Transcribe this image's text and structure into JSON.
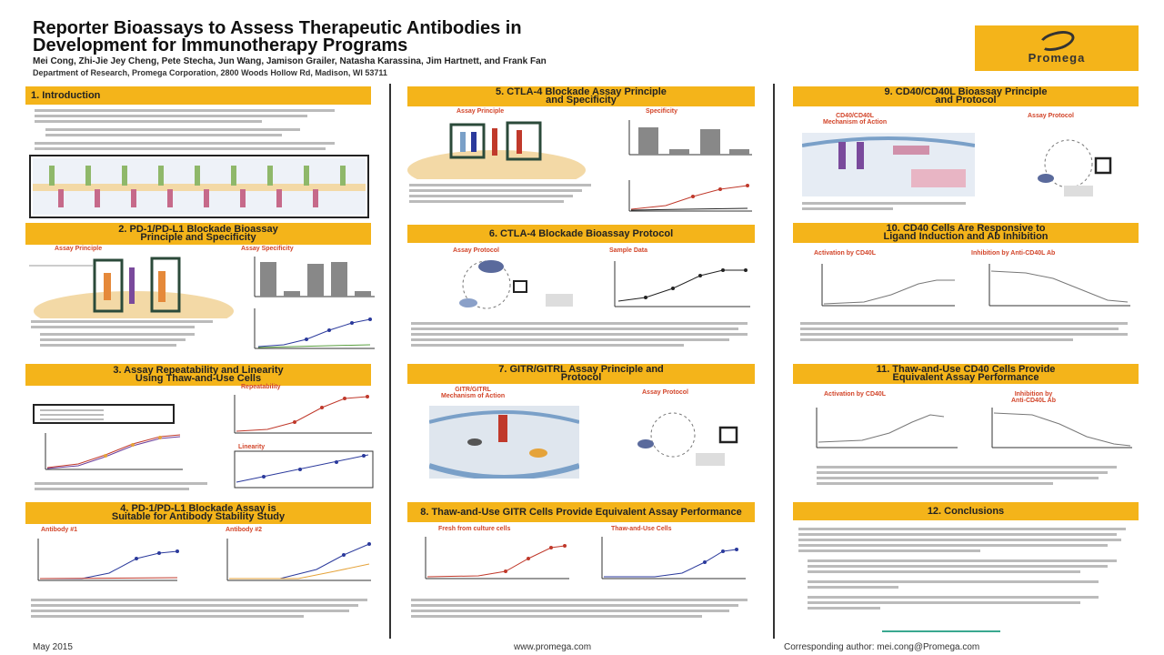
{
  "header": {
    "title_line1": "Reporter Bioassays to Assess Therapeutic Antibodies in",
    "title_line2": "Development for Immunotherapy Programs",
    "authors": "Mei Cong, Zhi-Jie Jey Cheng, Pete Stecha, Jun Wang, Jamison Grailer, Natasha Karassina, Jim Hartnett, and Frank Fan",
    "department": "Department of Research, Promega Corporation, 2800 Woods Hollow Rd, Madison, WI 53711",
    "logo_text": "Promega"
  },
  "sections": {
    "s1": "1. Introduction",
    "s2_l1": "2. PD-1/PD-L1 Blockade Bioassay",
    "s2_l2": "Principle and Specificity",
    "s3_l1": "3. Assay Repeatability and Linearity",
    "s3_l2": "Using Thaw-and-Use Cells",
    "s4_l1": "4. PD-1/PD-L1 Blockade Assay is",
    "s4_l2": "Suitable for Antibody Stability Study",
    "s5_l1": "5. CTLA-4 Blockade Assay Principle",
    "s5_l2": "and Specificity",
    "s6": "6. CTLA-4 Blockade Bioassay Protocol",
    "s7_l1": "7. GITR/GITRL Assay Principle and",
    "s7_l2": "Protocol",
    "s8": "8. Thaw-and-Use GITR Cells Provide Equivalent Assay Performance",
    "s9_l1": "9. CD40/CD40L Bioassay Principle",
    "s9_l2": "and Protocol",
    "s10_l1": "10. CD40 Cells Are Responsive to",
    "s10_l2": "Ligand Induction and Ab Inhibition",
    "s11_l1": "11. Thaw-and-Use CD40 Cells Provide",
    "s11_l2": "Equivalent Assay Performance",
    "s12": "12. Conclusions"
  },
  "subtitles": {
    "assay_principle": "Assay Principle",
    "assay_specificity": "Assay Specificity",
    "repeatability": "Repeatability",
    "linearity": "Linearity",
    "antibody_1": "Antibody #1",
    "antibody_2": "Antibody #2",
    "specificity": "Specificity",
    "assay_protocol": "Assay Protocol",
    "sample_data": "Sample Data",
    "gitr_moa_l1": "GITR/GITRL",
    "gitr_moa_l2": "Mechanism of Action",
    "fresh_culture": "Fresh from culture cells",
    "thaw_use": "Thaw-and-Use Cells",
    "cd40_moa_l1": "CD40/CD40L",
    "cd40_moa_l2": "Mechanism of Action",
    "activation_cd40l": "Activation by CD40L",
    "inhibition_anti": "Inhibition by Anti-CD40L Ab",
    "activation_cd40l_11": "Activation by CD40L",
    "inhibition_anti_11_l1": "Inhibition by",
    "inhibition_anti_11_l2": "Anti-CD40L Ab"
  },
  "footer": {
    "date": "May 2015",
    "url": "www.promega.com",
    "author": "Corresponding author: mei.cong@Promega.com"
  },
  "colors": {
    "accent": "#f4b41a",
    "subtitle": "#d2452a"
  }
}
